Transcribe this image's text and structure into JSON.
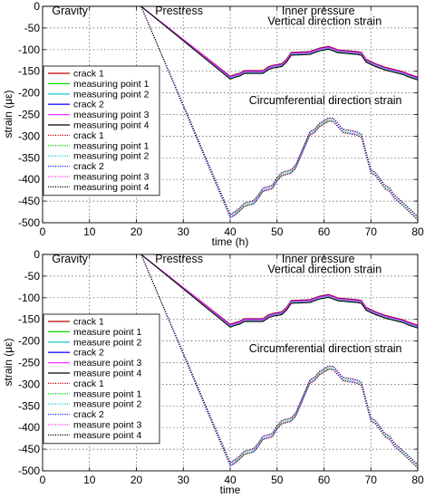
{
  "chart_data": [
    {
      "type": "line",
      "xlabel": "time (h)",
      "ylabel": "strain (με)",
      "xlim": [
        0,
        80
      ],
      "ylim": [
        -500,
        0
      ],
      "xticks": [
        "0",
        "10",
        "20",
        "30",
        "40",
        "50",
        "60",
        "70",
        "80"
      ],
      "yticks": [
        "0",
        "-50",
        "-100",
        "-150",
        "-200",
        "-250",
        "-300",
        "-350",
        "-400",
        "-450",
        "-500"
      ],
      "grid": true,
      "legend_position": "left",
      "annotations": [
        {
          "text": "Gravity",
          "x": 2,
          "y": -10
        },
        {
          "text": "Prestress",
          "x": 24,
          "y": -10
        },
        {
          "text": "Inner pressure",
          "x": 51,
          "y": -10
        },
        {
          "text": "Vertical direction strain",
          "x": 48,
          "y": -35
        },
        {
          "text": "Circumferential direction strain",
          "x": 44,
          "y": -218
        }
      ],
      "legend": [
        {
          "label": "crack 1",
          "color": "#c00000",
          "style": "solid"
        },
        {
          "label": "measuring point 1",
          "color": "#00dd00",
          "style": "solid"
        },
        {
          "label": "measuring point 2",
          "color": "#33cccc",
          "style": "solid"
        },
        {
          "label": "crack 2",
          "color": "#1a1aff",
          "style": "solid"
        },
        {
          "label": "measuring point 3",
          "color": "#ff33ff",
          "style": "solid"
        },
        {
          "label": "measuring point 4",
          "color": "#000000",
          "style": "solid"
        },
        {
          "label": "crack 1",
          "color": "#c00000",
          "style": "dotted"
        },
        {
          "label": "measuring point 1",
          "color": "#00dd00",
          "style": "dotted"
        },
        {
          "label": "measuring point 2",
          "color": "#33cccc",
          "style": "dotted"
        },
        {
          "label": "crack 2",
          "color": "#1a1aff",
          "style": "dotted"
        },
        {
          "label": "measuring point 3",
          "color": "#ff33ff",
          "style": "dotted"
        },
        {
          "label": "measuring point 4",
          "color": "#000000",
          "style": "dotted"
        }
      ],
      "vertical_curve": {
        "x": [
          0,
          21,
          40,
          41,
          42,
          43,
          47,
          48,
          49,
          51,
          52,
          53,
          57,
          58,
          59,
          61,
          62,
          63,
          67,
          68,
          69,
          71,
          72,
          73,
          77,
          78,
          80
        ],
        "y": [
          0,
          0,
          -165,
          -161,
          -158,
          -152,
          -152,
          -144,
          -140,
          -136,
          -126,
          -110,
          -108,
          -104,
          -100,
          -96,
          -100,
          -104,
          -108,
          -110,
          -126,
          -136,
          -140,
          -144,
          -155,
          -160,
          -167
        ]
      },
      "circ_curve": {
        "x": [
          0,
          21,
          40,
          41,
          42,
          43,
          45,
          46,
          47,
          49,
          50,
          51,
          53,
          54,
          57,
          58,
          59,
          61,
          62,
          63,
          64,
          67,
          68,
          70,
          71,
          73,
          74,
          75,
          77,
          80
        ],
        "y": [
          0,
          0,
          -485,
          -479,
          -470,
          -459,
          -453,
          -440,
          -424,
          -418,
          -400,
          -388,
          -382,
          -370,
          -294,
          -288,
          -275,
          -262,
          -263,
          -275,
          -288,
          -294,
          -300,
          -382,
          -388,
          -418,
          -424,
          -440,
          -459,
          -490
        ]
      }
    },
    {
      "type": "line",
      "xlabel": "time",
      "ylabel": "strain (με)",
      "xlim": [
        0,
        80
      ],
      "ylim": [
        -500,
        0
      ],
      "xticks": [
        "0",
        "10",
        "20",
        "30",
        "40",
        "50",
        "60",
        "70",
        "80"
      ],
      "yticks": [
        "0",
        "-50",
        "-100",
        "-150",
        "-200",
        "-250",
        "-300",
        "-350",
        "-400",
        "-450",
        "-500"
      ],
      "grid": true,
      "legend_position": "left",
      "annotations": [
        {
          "text": "Gravity",
          "x": 2,
          "y": -10
        },
        {
          "text": "Prestress",
          "x": 24,
          "y": -10
        },
        {
          "text": "Inner pressure",
          "x": 51,
          "y": -10
        },
        {
          "text": "Vertical direction strain",
          "x": 48,
          "y": -35
        },
        {
          "text": "Circumferential direction strain",
          "x": 44,
          "y": -218
        }
      ],
      "legend": [
        {
          "label": "crack 1",
          "color": "#c00000",
          "style": "solid"
        },
        {
          "label": "measure point 1",
          "color": "#00dd00",
          "style": "solid"
        },
        {
          "label": "measure point 2",
          "color": "#33cccc",
          "style": "solid"
        },
        {
          "label": "crack 2",
          "color": "#1a1aff",
          "style": "solid"
        },
        {
          "label": "measure point 3",
          "color": "#ff33ff",
          "style": "solid"
        },
        {
          "label": "measure point 4",
          "color": "#000000",
          "style": "solid"
        },
        {
          "label": "crack 1",
          "color": "#c00000",
          "style": "dotted"
        },
        {
          "label": "measure point 1",
          "color": "#00dd00",
          "style": "dotted"
        },
        {
          "label": "measure point 2",
          "color": "#33cccc",
          "style": "dotted"
        },
        {
          "label": "crack 2",
          "color": "#1a1aff",
          "style": "dotted"
        },
        {
          "label": "measure point 3",
          "color": "#ff33ff",
          "style": "dotted"
        },
        {
          "label": "measure point 4",
          "color": "#000000",
          "style": "dotted"
        }
      ],
      "vertical_curve": {
        "x": [
          0,
          21,
          40,
          41,
          42,
          43,
          47,
          48,
          49,
          51,
          52,
          53,
          57,
          58,
          59,
          61,
          62,
          63,
          67,
          68,
          69,
          71,
          72,
          73,
          77,
          78,
          80
        ],
        "y": [
          0,
          0,
          -165,
          -161,
          -158,
          -152,
          -152,
          -144,
          -140,
          -136,
          -126,
          -110,
          -108,
          -104,
          -100,
          -96,
          -100,
          -104,
          -108,
          -110,
          -126,
          -136,
          -140,
          -144,
          -155,
          -160,
          -167
        ]
      },
      "circ_curve": {
        "x": [
          0,
          21,
          40,
          41,
          42,
          43,
          45,
          46,
          47,
          49,
          50,
          51,
          53,
          54,
          57,
          58,
          59,
          61,
          62,
          63,
          64,
          67,
          68,
          70,
          71,
          73,
          74,
          75,
          77,
          80
        ],
        "y": [
          0,
          0,
          -485,
          -479,
          -470,
          -459,
          -453,
          -440,
          -424,
          -418,
          -400,
          -388,
          -382,
          -370,
          -294,
          -288,
          -275,
          -262,
          -263,
          -275,
          -288,
          -294,
          -300,
          -382,
          -388,
          -418,
          -424,
          -440,
          -459,
          -490
        ]
      }
    }
  ]
}
